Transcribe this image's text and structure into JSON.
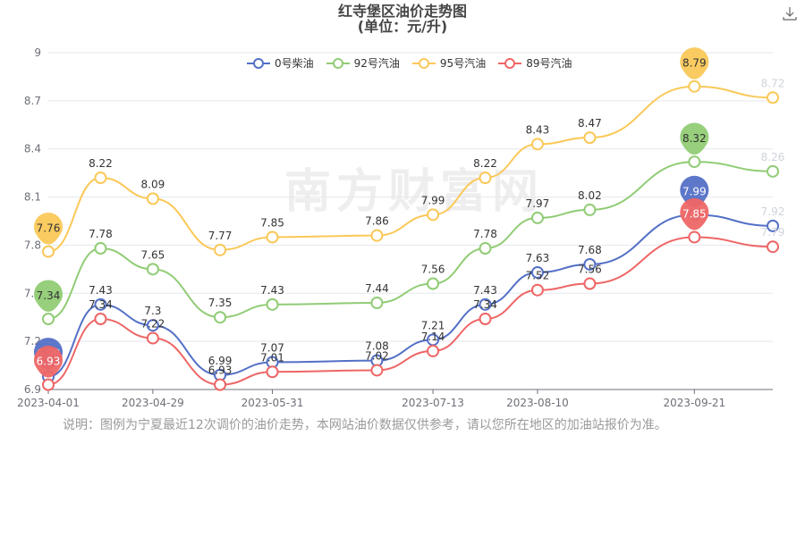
{
  "title_line1": "红寺堡区油价走势图",
  "title_line2": "(单位：元/升)",
  "watermark": "南方财富网",
  "note": "说明：图例为宁夏最近12次调价的油价走势，本网站油价数据仅供参考，请以您所在地区的加油站报价为准。",
  "chart_data": {
    "type": "line",
    "title": "红寺堡区油价走势图",
    "subtitle": "(单位：元/升)",
    "xlabel": "",
    "ylabel": "",
    "ylim": [
      6.9,
      9
    ],
    "yticks": [
      6.9,
      7.2,
      7.5,
      7.8,
      8.1,
      8.4,
      8.7,
      9
    ],
    "y_tick_labels": [
      "6.9",
      "7.2",
      "7.5",
      "7.8",
      "8.1",
      "8.4",
      "8.7",
      "9"
    ],
    "x_tick_labels": [
      "2023-04-01",
      "2023-04-29",
      "2023-05-31",
      "2023-07-13",
      "2023-08-10",
      "2023-09-21"
    ],
    "x": [
      "2023-04-01",
      "2023-04-15",
      "2023-04-29",
      "2023-05-17",
      "2023-05-31",
      "2023-06-28",
      "2023-07-13",
      "2023-07-27",
      "2023-08-10",
      "2023-08-24",
      "2023-09-21",
      "2023-10-12"
    ],
    "legend_position": "top",
    "series": [
      {
        "name": "0号柴油",
        "color": "#5470c6",
        "values": [
          6.98,
          7.43,
          7.3,
          6.99,
          7.07,
          7.08,
          7.21,
          7.43,
          7.63,
          7.68,
          7.99,
          7.92
        ],
        "labels": [
          "",
          "7.43",
          "7.3",
          "6.99",
          "7.07",
          "7.08",
          "7.21",
          "7.43",
          "7.63",
          "7.68",
          "",
          "7.92"
        ]
      },
      {
        "name": "92号汽油",
        "color": "#91cc75",
        "values": [
          7.34,
          7.78,
          7.65,
          7.35,
          7.43,
          7.44,
          7.56,
          7.78,
          7.97,
          8.02,
          8.32,
          8.26
        ],
        "labels": [
          "",
          "7.78",
          "7.65",
          "7.35",
          "7.43",
          "7.44",
          "7.56",
          "7.78",
          "7.97",
          "8.02",
          "",
          "8.26"
        ]
      },
      {
        "name": "95号汽油",
        "color": "#fac858",
        "values": [
          7.76,
          8.22,
          8.09,
          7.77,
          7.85,
          7.86,
          7.99,
          8.22,
          8.43,
          8.47,
          8.79,
          8.72
        ],
        "labels": [
          "",
          "8.22",
          "8.09",
          "7.77",
          "7.85",
          "7.86",
          "7.99",
          "8.22",
          "8.43",
          "8.47",
          "",
          "8.72"
        ]
      },
      {
        "name": "89号汽油",
        "color": "#ee6666",
        "values": [
          6.93,
          7.34,
          7.22,
          6.93,
          7.01,
          7.02,
          7.14,
          7.34,
          7.52,
          7.56,
          7.85,
          7.79
        ],
        "labels": [
          "",
          "7.34",
          "7.22",
          "6.93",
          "7.01",
          "7.02",
          "7.14",
          "7.34",
          "7.52",
          "7.56",
          "",
          "7.79"
        ]
      }
    ],
    "pins": [
      {
        "series": 0,
        "index": 0,
        "label": "6.98"
      },
      {
        "series": 1,
        "index": 0,
        "label": "7.34"
      },
      {
        "series": 2,
        "index": 0,
        "label": "7.76"
      },
      {
        "series": 3,
        "index": 0,
        "label": "6.93"
      },
      {
        "series": 0,
        "index": 10,
        "label": "7.99"
      },
      {
        "series": 1,
        "index": 10,
        "label": "8.32"
      },
      {
        "series": 2,
        "index": 10,
        "label": "8.79"
      },
      {
        "series": 3,
        "index": 10,
        "label": "7.85"
      }
    ]
  }
}
